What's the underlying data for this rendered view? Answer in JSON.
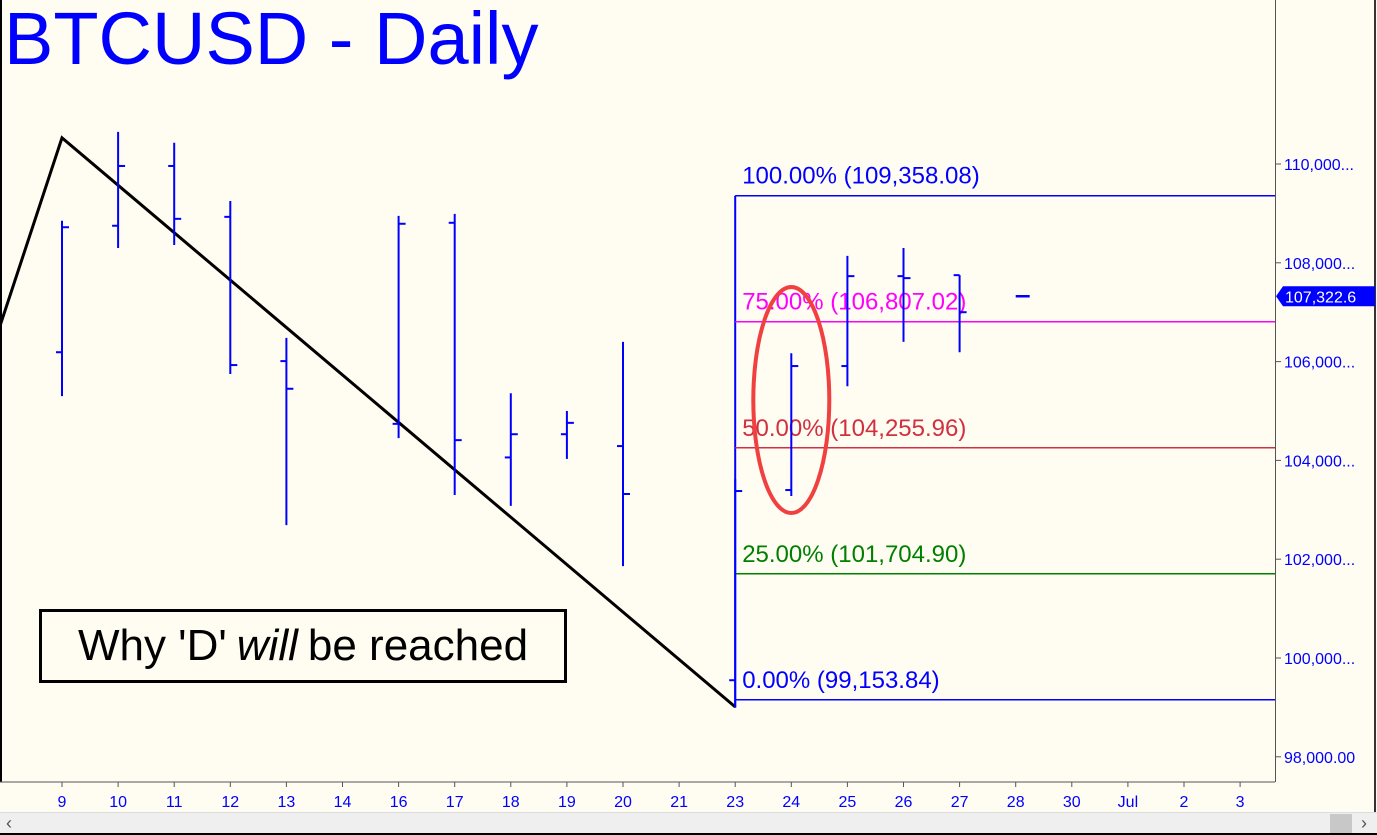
{
  "title": "BTCUSD - Daily",
  "note": {
    "pre": "Why 'D'",
    "em": "will",
    "post": "be reached"
  },
  "colors": {
    "bars": "#0000ff",
    "background": "#fffcf2",
    "zigzag": "#000000",
    "ellipse": "#f04040",
    "current_price_bg": "#0000ff"
  },
  "chart_data": {
    "type": "ohlc",
    "ylim": [
      97500,
      112000
    ],
    "y_ticks": [
      "110,000...",
      "108,000...",
      "106,000...",
      "104,000...",
      "102,000...",
      "100,000...",
      "98,000.00"
    ],
    "y_tick_values": [
      110000,
      108000,
      106000,
      104000,
      102000,
      100000,
      98000
    ],
    "x_ticks": [
      "9",
      "10",
      "11",
      "12",
      "13",
      "14",
      "16",
      "17",
      "18",
      "19",
      "20",
      "21",
      "23",
      "24",
      "25",
      "26",
      "27",
      "28",
      "30",
      "Jul",
      "2",
      "3"
    ],
    "bars": [
      {
        "date": "9",
        "open": 106190,
        "high": 108850,
        "low": 105300,
        "close": 108720
      },
      {
        "date": "10",
        "open": 108750,
        "high": 110650,
        "low": 108300,
        "close": 109960
      },
      {
        "date": "11",
        "open": 109960,
        "high": 110430,
        "low": 108360,
        "close": 108890
      },
      {
        "date": "12",
        "open": 108930,
        "high": 109250,
        "low": 105750,
        "close": 105930
      },
      {
        "date": "13",
        "open": 106010,
        "high": 106480,
        "low": 102690,
        "close": 105450
      },
      {
        "date": "16",
        "open": 104740,
        "high": 108950,
        "low": 104450,
        "close": 108790
      },
      {
        "date": "17",
        "open": 108810,
        "high": 108990,
        "low": 103300,
        "close": 104410
      },
      {
        "date": "18",
        "open": 104060,
        "high": 105360,
        "low": 103080,
        "close": 104530
      },
      {
        "date": "19",
        "open": 104530,
        "high": 105000,
        "low": 104030,
        "close": 104760
      },
      {
        "date": "20",
        "open": 104290,
        "high": 106400,
        "low": 101860,
        "close": 103320
      },
      {
        "date": "23",
        "open": 99550,
        "high": 103620,
        "low": 99000,
        "close": 103380
      },
      {
        "date": "24",
        "open": 103400,
        "high": 106170,
        "low": 103280,
        "close": 105910
      },
      {
        "date": "25",
        "open": 105910,
        "high": 108140,
        "low": 105500,
        "close": 107730
      },
      {
        "date": "26",
        "open": 107730,
        "high": 108300,
        "low": 106400,
        "close": 107690
      },
      {
        "date": "27",
        "open": 107750,
        "high": 107750,
        "low": 106190,
        "close": 107000
      },
      {
        "date": "28",
        "open": 107322.6,
        "high": 107322.6,
        "low": 107322.6,
        "close": 107322.6
      }
    ],
    "current_price": "107,322.6",
    "current_price_value": 107322.6,
    "zigzag": [
      {
        "date": "8",
        "value": 106740
      },
      {
        "date": "9",
        "value": 110530
      },
      {
        "date": "23",
        "value": 99010
      }
    ],
    "fib_levels": [
      {
        "label": "100.00% (109,358.08)",
        "value": 109358.08,
        "color": "#0000ff"
      },
      {
        "label": "75.00% (106,807.02)",
        "value": 106807.02,
        "color": "#ff00ff"
      },
      {
        "label": "50.00% (104,255.96)",
        "value": 104255.96,
        "color": "#d03040"
      },
      {
        "label": "25.00% (101,704.90)",
        "value": 101704.9,
        "color": "#008000"
      },
      {
        "label": "0.00% (99,153.84)",
        "value": 99153.84,
        "color": "#0000ff"
      }
    ],
    "fib_start_date": "23",
    "highlight_date": "24",
    "grid": false
  }
}
